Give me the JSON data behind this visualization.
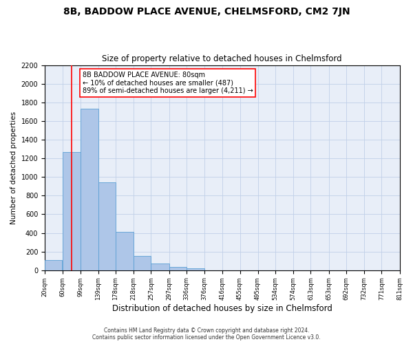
{
  "title": "8B, BADDOW PLACE AVENUE, CHELMSFORD, CM2 7JN",
  "subtitle": "Size of property relative to detached houses in Chelmsford",
  "xlabel": "Distribution of detached houses by size in Chelmsford",
  "ylabel": "Number of detached properties",
  "bar_left_edges": [
    20,
    60,
    99,
    139,
    178,
    218,
    257,
    297,
    336,
    376,
    416,
    455,
    495,
    534,
    574,
    613,
    653,
    692,
    732,
    771
  ],
  "bar_widths": [
    39,
    39,
    40,
    39,
    40,
    39,
    40,
    39,
    40,
    40,
    39,
    40,
    39,
    40,
    39,
    40,
    39,
    40,
    39,
    40
  ],
  "bar_heights": [
    110,
    1270,
    1730,
    940,
    410,
    150,
    75,
    35,
    20,
    0,
    0,
    0,
    0,
    0,
    0,
    0,
    0,
    0,
    0,
    0
  ],
  "bar_color": "#aec6e8",
  "bar_edge_color": "#5a9fd4",
  "vline_x": 80,
  "vline_color": "red",
  "annotation_line1": "8B BADDOW PLACE AVENUE: 80sqm",
  "annotation_line2": "← 10% of detached houses are smaller (487)",
  "annotation_line3": "89% of semi-detached houses are larger (4,211) →",
  "annotation_box_color": "white",
  "annotation_box_edge_color": "red",
  "ylim": [
    0,
    2200
  ],
  "xlim": [
    20,
    811
  ],
  "tick_labels": [
    "20sqm",
    "60sqm",
    "99sqm",
    "139sqm",
    "178sqm",
    "218sqm",
    "257sqm",
    "297sqm",
    "336sqm",
    "376sqm",
    "416sqm",
    "455sqm",
    "495sqm",
    "534sqm",
    "574sqm",
    "613sqm",
    "653sqm",
    "692sqm",
    "732sqm",
    "771sqm",
    "811sqm"
  ],
  "tick_positions": [
    20,
    60,
    99,
    139,
    178,
    218,
    257,
    297,
    336,
    376,
    416,
    455,
    495,
    534,
    574,
    613,
    653,
    692,
    732,
    771,
    811
  ],
  "ytick_positions": [
    0,
    200,
    400,
    600,
    800,
    1000,
    1200,
    1400,
    1600,
    1800,
    2000,
    2200
  ],
  "grid_color": "#c0d0e8",
  "bg_color": "#e8eef8",
  "footer_line1": "Contains HM Land Registry data © Crown copyright and database right 2024.",
  "footer_line2": "Contains public sector information licensed under the Open Government Licence v3.0.",
  "title_fontsize": 10,
  "subtitle_fontsize": 8.5,
  "xlabel_fontsize": 8.5,
  "ylabel_fontsize": 7.5,
  "xtick_fontsize": 6,
  "ytick_fontsize": 7,
  "annotation_fontsize": 7,
  "footer_fontsize": 5.5
}
